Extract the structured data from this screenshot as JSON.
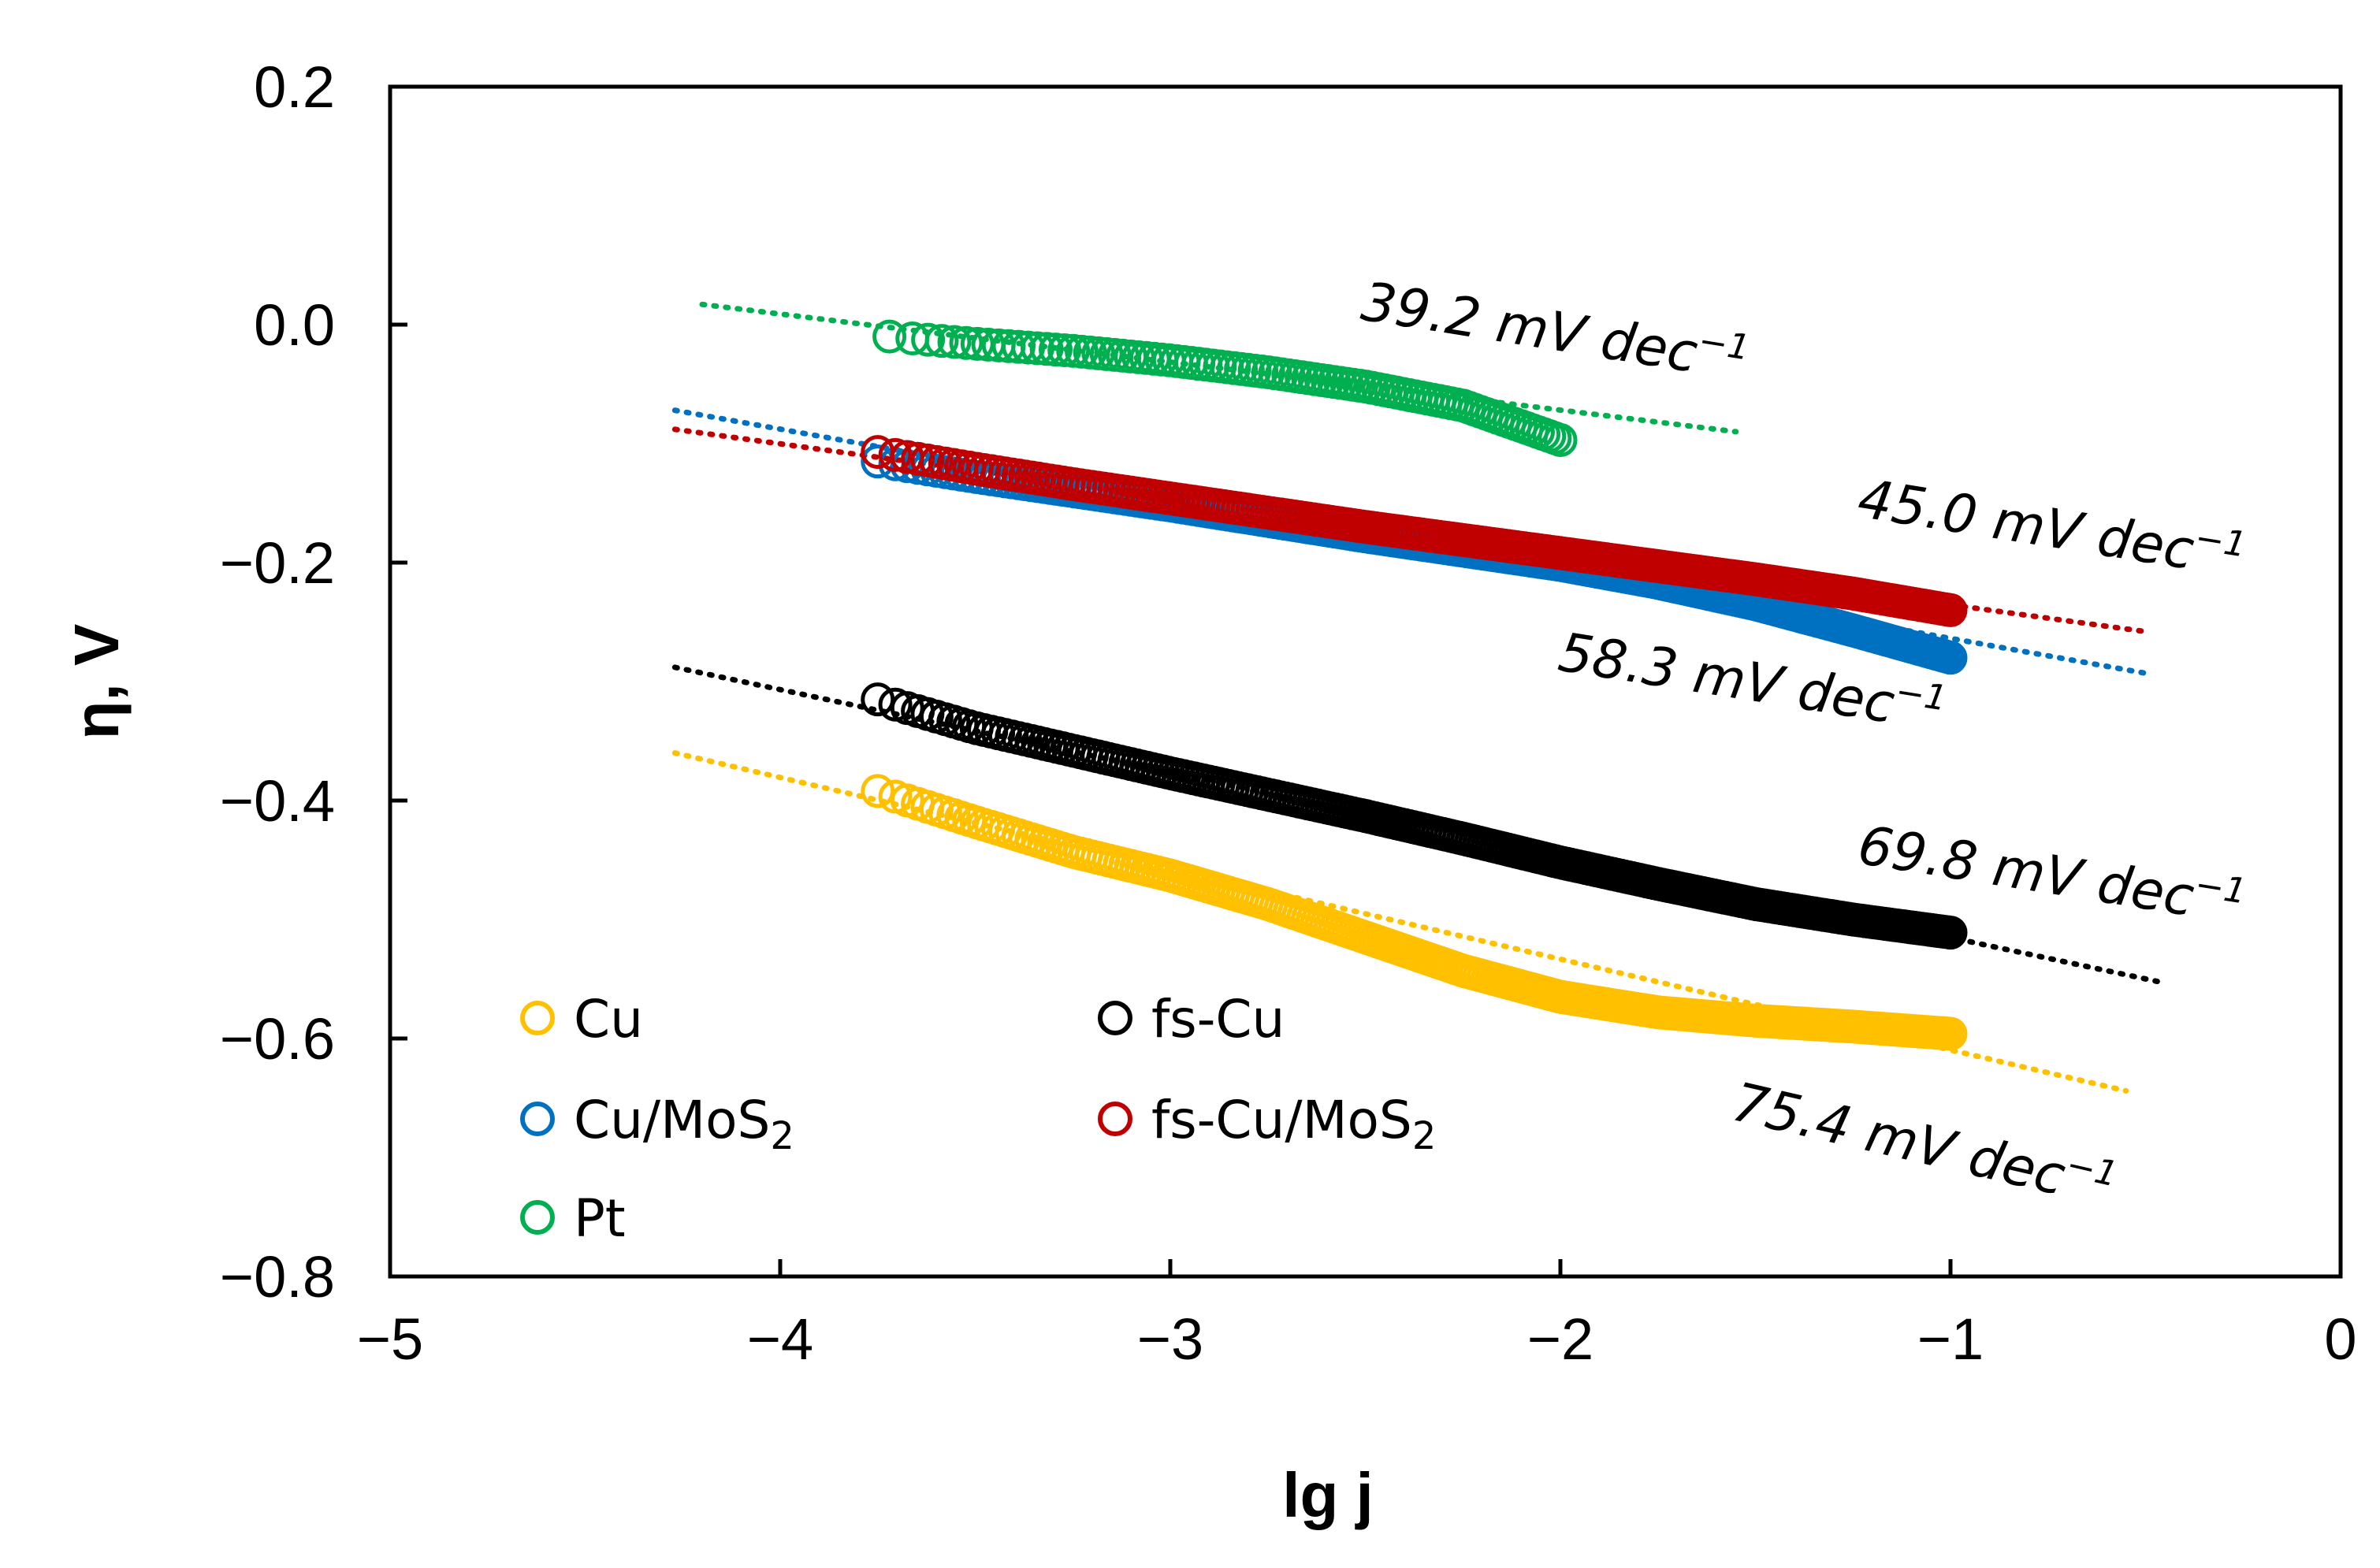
{
  "chart_data": {
    "type": "scatter",
    "xlabel": "lg j",
    "ylabel": "η, V",
    "xlim": [
      -5,
      0
    ],
    "ylim": [
      -0.8,
      0.2
    ],
    "x_ticks": [
      -5,
      -4,
      -3,
      -2,
      -1,
      0
    ],
    "x_tick_labels": [
      "−5",
      "−4",
      "−3",
      "−2",
      "−1",
      "0"
    ],
    "y_ticks": [
      0.2,
      0.0,
      -0.2,
      -0.4,
      -0.6,
      -0.8
    ],
    "y_tick_labels": [
      "0.2",
      "0.0",
      "−0.2",
      "−0.4",
      "−0.6",
      "−0.8"
    ],
    "grid": false,
    "legend_position": "bottom-left",
    "series": [
      {
        "name": "Cu",
        "color": "#FFC000",
        "x_range": [
          -3.75,
          -1.0
        ],
        "points": [
          [
            -3.75,
            -0.392
          ],
          [
            -3.5,
            -0.418
          ],
          [
            -3.25,
            -0.443
          ],
          [
            -3.0,
            -0.463
          ],
          [
            -2.75,
            -0.487
          ],
          [
            -2.5,
            -0.515
          ],
          [
            -2.25,
            -0.543
          ],
          [
            -2.0,
            -0.565
          ],
          [
            -1.75,
            -0.578
          ],
          [
            -1.5,
            -0.585
          ],
          [
            -1.25,
            -0.59
          ],
          [
            -1.0,
            -0.596
          ]
        ],
        "fit_line": [
          [
            -4.27,
            -0.36
          ],
          [
            -0.55,
            -0.644
          ]
        ]
      },
      {
        "name": "Cu/MoS",
        "subscript": "2",
        "color": "#0070C0",
        "x_range": [
          -3.75,
          -1.0
        ],
        "points": [
          [
            -3.75,
            -0.115
          ],
          [
            -3.5,
            -0.128
          ],
          [
            -3.25,
            -0.14
          ],
          [
            -3.0,
            -0.152
          ],
          [
            -2.75,
            -0.165
          ],
          [
            -2.5,
            -0.178
          ],
          [
            -2.25,
            -0.19
          ],
          [
            -2.0,
            -0.202
          ],
          [
            -1.75,
            -0.217
          ],
          [
            -1.5,
            -0.235
          ],
          [
            -1.25,
            -0.257
          ],
          [
            -1.0,
            -0.28
          ]
        ],
        "fit_line": [
          [
            -4.27,
            -0.072
          ],
          [
            -0.5,
            -0.293
          ]
        ]
      },
      {
        "name": "Pt",
        "color": "#00B050",
        "x_range": [
          -3.72,
          -2.0
        ],
        "points": [
          [
            -3.72,
            -0.01
          ],
          [
            -3.5,
            -0.016
          ],
          [
            -3.25,
            -0.022
          ],
          [
            -3.0,
            -0.03
          ],
          [
            -2.75,
            -0.04
          ],
          [
            -2.5,
            -0.052
          ],
          [
            -2.25,
            -0.068
          ],
          [
            -2.0,
            -0.097
          ]
        ],
        "fit_line": [
          [
            -4.2,
            0.017
          ],
          [
            -1.55,
            -0.09
          ]
        ]
      },
      {
        "name": "fs-Cu",
        "color": "#000000",
        "x_range": [
          -3.75,
          -1.0
        ],
        "points": [
          [
            -3.75,
            -0.315
          ],
          [
            -3.5,
            -0.339
          ],
          [
            -3.25,
            -0.358
          ],
          [
            -3.0,
            -0.377
          ],
          [
            -2.75,
            -0.395
          ],
          [
            -2.5,
            -0.413
          ],
          [
            -2.25,
            -0.432
          ],
          [
            -2.0,
            -0.452
          ],
          [
            -1.75,
            -0.47
          ],
          [
            -1.5,
            -0.487
          ],
          [
            -1.25,
            -0.5
          ],
          [
            -1.0,
            -0.511
          ]
        ],
        "fit_line": [
          [
            -4.27,
            -0.288
          ],
          [
            -0.47,
            -0.552
          ]
        ]
      },
      {
        "name": "fs-Cu/MoS",
        "subscript": "2",
        "color": "#C00000",
        "x_range": [
          -3.75,
          -1.0
        ],
        "points": [
          [
            -3.75,
            -0.107
          ],
          [
            -3.5,
            -0.121
          ],
          [
            -3.25,
            -0.134
          ],
          [
            -3.0,
            -0.146
          ],
          [
            -2.75,
            -0.158
          ],
          [
            -2.5,
            -0.17
          ],
          [
            -2.25,
            -0.181
          ],
          [
            -2.0,
            -0.192
          ],
          [
            -1.75,
            -0.203
          ],
          [
            -1.5,
            -0.214
          ],
          [
            -1.25,
            -0.226
          ],
          [
            -1.0,
            -0.24
          ]
        ],
        "fit_line": [
          [
            -4.27,
            -0.088
          ],
          [
            -0.5,
            -0.258
          ]
        ]
      }
    ],
    "annotations": [
      {
        "label": "39.2 mV dec",
        "sup": "−1",
        "series": "Pt"
      },
      {
        "label": "45.0 mV dec",
        "sup": "−1",
        "series": "fs-Cu/MoS2"
      },
      {
        "label": "58.3 mV dec",
        "sup": "−1",
        "series": "Cu/MoS2"
      },
      {
        "label": "69.8 mV dec",
        "sup": "−1",
        "series": "fs-Cu"
      },
      {
        "label": "75.4 mV dec",
        "sup": "−1",
        "series": "Cu"
      }
    ]
  }
}
